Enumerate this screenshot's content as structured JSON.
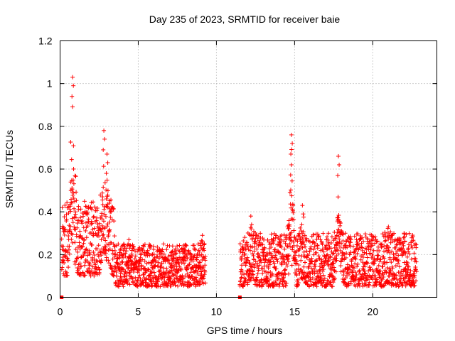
{
  "chart_data": {
    "type": "scatter",
    "title": "Day 235 of 2023, SRMTID for receiver baie",
    "xlabel": "GPS time / hours",
    "ylabel": "SRMTID / TECUs",
    "xlim": [
      0,
      24.1
    ],
    "ylim": [
      0,
      1.2
    ],
    "x_ticks": [
      0,
      5,
      10,
      15,
      20
    ],
    "x_tick_labels": [
      "0",
      "5",
      "10",
      "15",
      "20"
    ],
    "y_ticks": [
      0,
      0.2,
      0.4,
      0.6,
      0.8,
      1,
      1.2
    ],
    "y_tick_labels": [
      "0",
      "0.2",
      "0.4",
      "0.6",
      "0.8",
      "1",
      "1.2"
    ],
    "grid": true,
    "marker": "plus",
    "color": "#ff0000",
    "series": [
      {
        "name": "SRMTID",
        "segments": [
          {
            "x_start": 0.1,
            "x_end": 3.5,
            "base": [
              0.1,
              0.45
            ],
            "spikes": [
              [
                0.8,
                1.03
              ],
              [
                2.8,
                0.78
              ],
              [
                3.0,
                0.67
              ]
            ]
          },
          {
            "x_start": 3.5,
            "x_end": 9.3,
            "base": [
              0.05,
              0.25
            ],
            "spikes": [
              [
                4.4,
                0.27
              ],
              [
                7.2,
                0.24
              ],
              [
                9.1,
                0.29
              ]
            ]
          },
          {
            "x_start": 11.5,
            "x_end": 22.8,
            "base": [
              0.05,
              0.3
            ],
            "spikes": [
              [
                12.2,
                0.38
              ],
              [
                14.8,
                0.76
              ],
              [
                15.5,
                0.43
              ],
              [
                17.8,
                0.66
              ],
              [
                21.0,
                0.33
              ],
              [
                22.0,
                0.3
              ]
            ]
          }
        ],
        "gap_markers": [
          [
            0.1,
            0.0
          ],
          [
            11.5,
            0.0
          ]
        ]
      }
    ]
  }
}
